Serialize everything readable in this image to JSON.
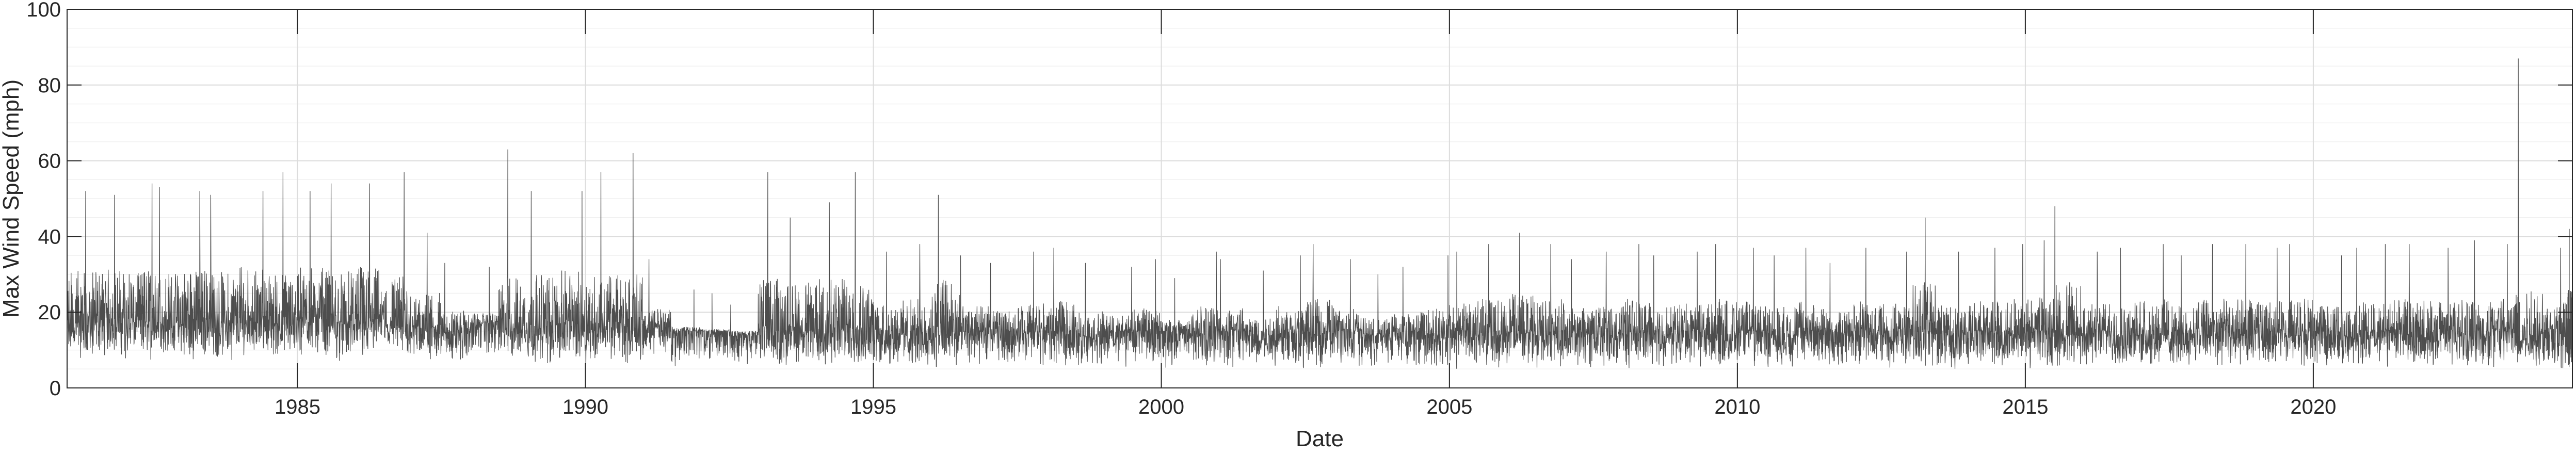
{
  "chart_data": {
    "type": "line",
    "title": "",
    "xlabel": "Date",
    "ylabel": "Max Wind Speed (mph)",
    "xlim": [
      "1981-01-01",
      "2024-07-01"
    ],
    "ylim": [
      0,
      100
    ],
    "yticks": [
      0,
      20,
      40,
      60,
      80,
      100
    ],
    "xticks": [
      "1985",
      "1990",
      "1995",
      "2000",
      "2005",
      "2010",
      "2015",
      "2020"
    ],
    "grid": true,
    "minor_grid": true,
    "legend": "none",
    "series": [
      {
        "color": "#4d4d4d",
        "x": [
          "1981-01",
          "1981-07",
          "1982-01",
          "1982-07",
          "1983-01",
          "1983-07",
          "1984-01",
          "1984-07",
          "1985-01",
          "1985-07",
          "1986-01",
          "1986-07",
          "1987-01",
          "1987-07",
          "1988-01",
          "1988-07",
          "1989-01",
          "1989-07",
          "1990-01",
          "1990-07",
          "1991-01",
          "1991-07",
          "1992-01",
          "1992-07",
          "1993-01",
          "1993-07",
          "1994-01",
          "1994-07",
          "1995-01",
          "1995-07",
          "1996-01",
          "1996-07",
          "1997-01",
          "1997-07",
          "1998-01",
          "1998-07",
          "1999-01",
          "1999-07",
          "2000-01",
          "2000-07",
          "2001-01",
          "2001-07",
          "2002-01",
          "2002-07",
          "2003-01",
          "2003-07",
          "2004-01",
          "2004-07",
          "2005-01",
          "2005-07",
          "2006-01",
          "2006-07",
          "2007-01",
          "2007-07",
          "2008-01",
          "2008-07",
          "2009-01",
          "2009-07",
          "2010-01",
          "2010-07",
          "2011-01",
          "2011-07",
          "2012-01",
          "2012-07",
          "2013-01",
          "2013-07",
          "2014-01",
          "2014-07",
          "2015-01",
          "2015-07",
          "2016-01",
          "2016-07",
          "2017-01",
          "2017-07",
          "2018-01",
          "2018-07",
          "2019-01",
          "2019-07",
          "2020-01",
          "2020-07",
          "2021-01",
          "2021-07",
          "2022-01",
          "2022-07",
          "2023-01",
          "2023-07",
          "2024-01",
          "2024-06"
        ],
        "y_max": [
          52,
          51,
          54,
          53,
          52,
          51,
          52,
          57,
          52,
          54,
          54,
          57,
          41,
          33,
          32,
          63,
          52,
          52,
          57,
          62,
          34,
          26,
          25,
          22,
          57,
          45,
          49,
          57,
          36,
          38,
          51,
          35,
          33,
          36,
          37,
          33,
          32,
          34,
          29,
          36,
          34,
          31,
          35,
          38,
          34,
          30,
          32,
          35,
          36,
          38,
          41,
          38,
          34,
          36,
          38,
          35,
          36,
          38,
          37,
          35,
          37,
          33,
          37,
          36,
          45,
          36,
          37,
          38,
          39,
          48,
          36,
          37,
          38,
          35,
          38,
          38,
          37,
          38,
          35,
          37,
          38,
          38,
          37,
          39,
          38,
          87,
          37,
          42
        ],
        "y_median": [
          17,
          18,
          18,
          17,
          18,
          17,
          18,
          17,
          18,
          17,
          18,
          16,
          16,
          15,
          17,
          16,
          16,
          17,
          16,
          16,
          16,
          15,
          15,
          15,
          15,
          15,
          15,
          16,
          15,
          14,
          15,
          15,
          15,
          15,
          15,
          14,
          15,
          15,
          15,
          14,
          15,
          14,
          15,
          14,
          15,
          14,
          15,
          14,
          15,
          14,
          15,
          14,
          15,
          14,
          15,
          14,
          15,
          14,
          15,
          14,
          15,
          14,
          15,
          14,
          15,
          14,
          15,
          14,
          15,
          14,
          15,
          14,
          15,
          14,
          15,
          14,
          15,
          14,
          15,
          14,
          15,
          14,
          15,
          14,
          15,
          14,
          15,
          14
        ],
        "y_min": [
          7,
          8,
          7,
          8,
          7,
          7,
          8,
          7,
          7,
          6,
          7,
          7,
          6,
          6,
          7,
          6,
          6,
          6,
          6,
          6,
          6,
          5,
          6,
          5,
          5,
          6,
          5,
          5,
          5,
          5,
          5,
          5,
          5,
          5,
          5,
          5,
          5,
          5,
          5,
          5,
          5,
          5,
          5,
          5,
          5,
          5,
          5,
          5,
          5,
          5,
          5,
          5,
          5,
          5,
          5,
          5,
          5,
          5,
          5,
          5,
          5,
          5,
          5,
          5,
          5,
          5,
          5,
          5,
          5,
          5,
          5,
          5,
          5,
          5,
          5,
          5,
          5,
          5,
          5,
          5,
          5,
          5,
          5,
          5,
          5,
          5,
          5,
          5
        ]
      }
    ]
  }
}
